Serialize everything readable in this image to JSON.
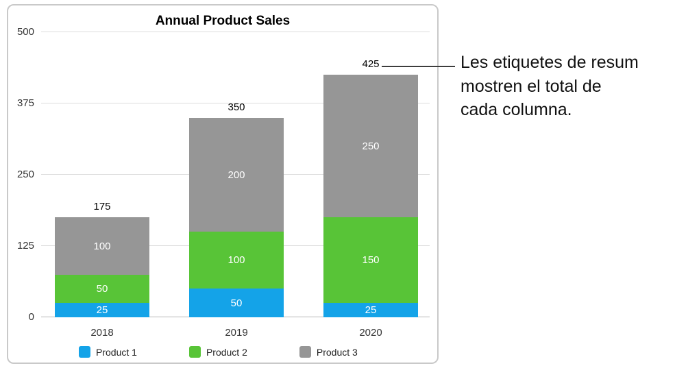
{
  "chart_data": {
    "type": "bar",
    "stacked": true,
    "title": "Annual Product Sales",
    "categories": [
      "2018",
      "2019",
      "2020"
    ],
    "series": [
      {
        "name": "Product 1",
        "color": "#14a3e8",
        "values": [
          25,
          50,
          25
        ]
      },
      {
        "name": "Product 2",
        "color": "#58c437",
        "values": [
          50,
          100,
          150
        ]
      },
      {
        "name": "Product 3",
        "color": "#969696",
        "values": [
          100,
          200,
          250
        ]
      }
    ],
    "totals": [
      175,
      350,
      425
    ],
    "y_ticks": [
      0,
      125,
      250,
      375,
      500
    ],
    "ylim": [
      0,
      500
    ],
    "grid": true,
    "legend_position": "bottom"
  },
  "callout": {
    "lines": [
      "Les etiquetes de resum",
      "mostren el total de",
      "cada columna."
    ]
  }
}
